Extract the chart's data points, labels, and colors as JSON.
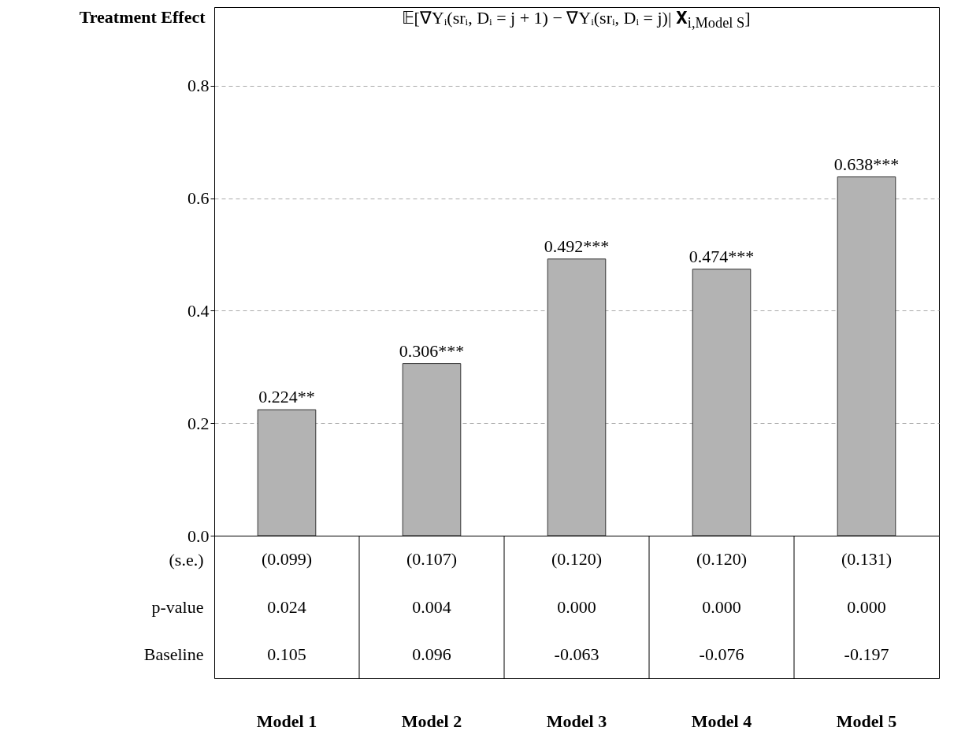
{
  "chart_data": [
    {
      "type": "bar",
      "title": "𝔼[∇Yᵢ(srᵢ, Dᵢ = j + 1) − ∇Yᵢ(srᵢ, Dᵢ = j)| 𝐗$_{i,Model S}$]",
      "ylabel": "Treatment Effect",
      "values": [
        0.224,
        0.306,
        0.492,
        0.474,
        0.638
      ],
      "value_labels": [
        "0.224**",
        "0.306***",
        "0.492***",
        "0.474***",
        "0.638***"
      ],
      "color": "#b3b3b3",
      "ylim": [
        0,
        0.94
      ],
      "yticks": [
        {
          "value": 0,
          "label": "0.0"
        },
        0.2,
        0.4,
        0.6,
        0.8
      ],
      "grid": "y",
      "tick_labels": "y"
    },
    {
      "type": "other",
      "categories": [
        "Model 1",
        "Model 2",
        "Model 3",
        "Model 4",
        "Model 5"
      ],
      "y_categories": [
        "(s.e.)",
        "p-value",
        "Baseline"
      ],
      "cell_labels": [
        [
          "(0.099)",
          "(0.107)",
          "(0.120)",
          "(0.120)",
          "(0.131)"
        ],
        [
          "0.024",
          "0.004",
          "0.000",
          "0.000",
          "0.000"
        ],
        [
          "0.105",
          "0.096",
          "-0.063",
          "-0.076",
          "-0.197"
        ]
      ]
    }
  ]
}
